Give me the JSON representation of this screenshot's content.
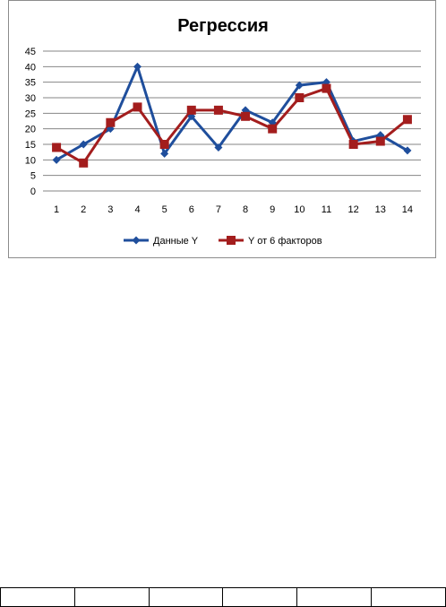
{
  "chart_data": {
    "type": "line",
    "title": "Регрессия",
    "xlabel": "",
    "ylabel": "",
    "categories": [
      "1",
      "2",
      "3",
      "4",
      "5",
      "6",
      "7",
      "8",
      "9",
      "10",
      "11",
      "12",
      "13",
      "14"
    ],
    "ylim": [
      0,
      45
    ],
    "yticks": [
      "0",
      "5",
      "10",
      "15",
      "20",
      "25",
      "30",
      "35",
      "40",
      "45"
    ],
    "grid": true,
    "legend_position": "bottom",
    "series": [
      {
        "name": "Данные Y",
        "marker": "diamond",
        "color": "#1f4e9c",
        "values": [
          10,
          15,
          20,
          40,
          12,
          24,
          14,
          26,
          22,
          34,
          35,
          16,
          18,
          13
        ]
      },
      {
        "name": "Y от 6 факторов",
        "marker": "square",
        "color": "#a31d1d",
        "values": [
          14,
          9,
          22,
          27,
          15,
          26,
          26,
          24,
          20,
          30,
          33,
          15,
          16,
          23
        ]
      }
    ]
  }
}
